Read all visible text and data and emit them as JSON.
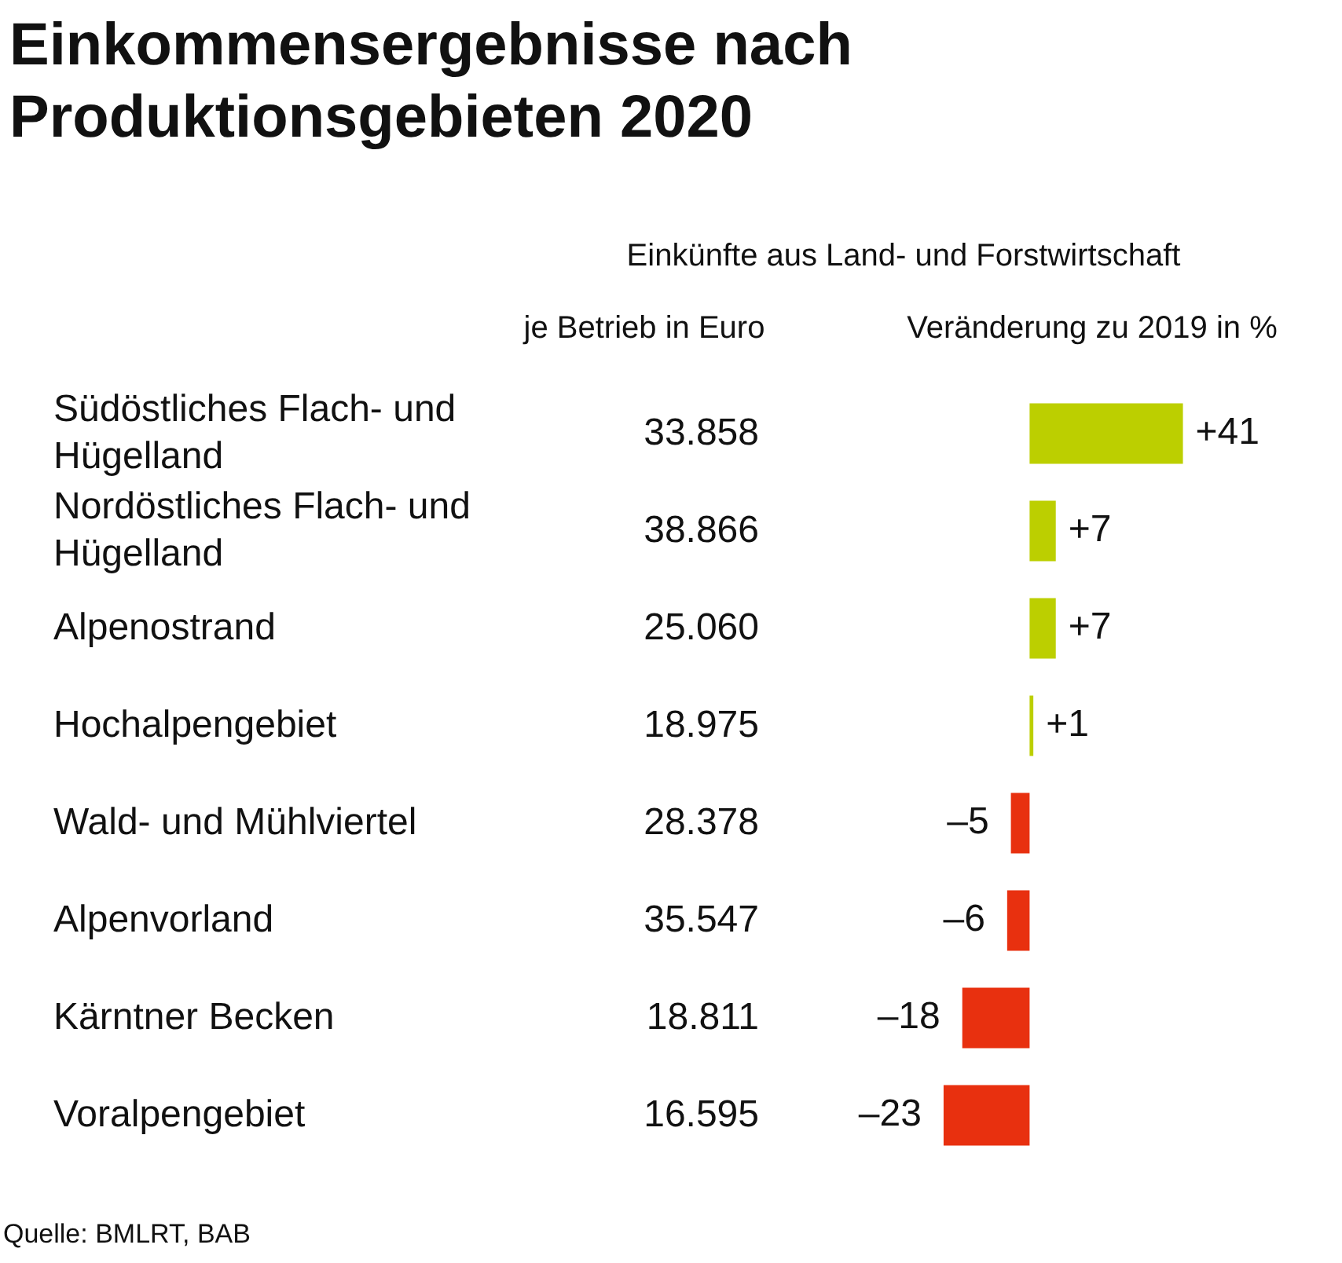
{
  "chart_data": [
    {
      "type": "other",
      "title": "Einkommensergebnisse nach Produktionsgebieten 2020",
      "subtitle": "Einkünfte aus Land- und Forstwirtschaft",
      "xlabel": "je Betrieb in Euro",
      "values": [
        33858,
        38866,
        25060,
        18975,
        28378,
        35547,
        18811,
        16595
      ],
      "value_labels": [
        "33.858",
        "38.866",
        "25.060",
        "18.975",
        "28.378",
        "35.547",
        "18.811",
        "16.595"
      ],
      "annotations": [
        "Quelle: BMLRT, BAB"
      ]
    },
    {
      "type": "bar",
      "orientation": "horizontal",
      "xlabel": "Veränderung zu 2019 in %",
      "categories": [
        "Südöstliches Flach- und Hügelland",
        "Nordöstliches Flach- und Hügelland",
        "Alpenostrand",
        "Hochalpengebiet",
        "Wald- und Mühlviertel",
        "Alpenvorland",
        "Kärntner Becken",
        "Voralpengebiet"
      ],
      "values": [
        41,
        7,
        7,
        1,
        -5,
        -6,
        -18,
        -23
      ],
      "colors": [
        "#bccf00",
        "#bccf00",
        "#bccf00",
        "#bccf00",
        "#e8300f",
        "#e8300f",
        "#e8300f",
        "#e8300f"
      ],
      "value_labels": [
        "+41",
        "+7",
        "+7",
        "+1",
        "–5",
        "–6",
        "–18",
        "–23"
      ]
    }
  ]
}
